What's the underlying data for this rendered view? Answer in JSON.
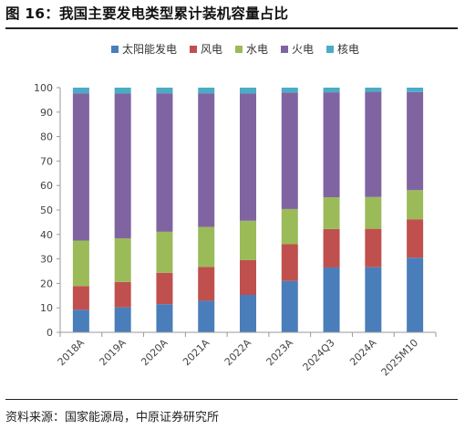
{
  "figure": {
    "title": "图 16：我国主要发电类型累计装机容量占比",
    "source": "资料来源：国家能源局，中原证券研究所"
  },
  "chart_data": {
    "type": "bar",
    "stacked": true,
    "categories": [
      "2018A",
      "2019A",
      "2020A",
      "2021A",
      "2022A",
      "2023A",
      "2024Q3",
      "2024A",
      "2025M10"
    ],
    "series": [
      {
        "name": "太阳能发电",
        "color": "#4a7ebb",
        "values": [
          9.2,
          10.2,
          11.5,
          12.9,
          15.3,
          21.0,
          26.5,
          26.6,
          30.5
        ]
      },
      {
        "name": "风电",
        "color": "#c0504d",
        "values": [
          9.7,
          10.4,
          12.8,
          13.8,
          14.2,
          15.0,
          15.7,
          15.7,
          15.7
        ]
      },
      {
        "name": "水电",
        "color": "#9bbb59",
        "values": [
          18.6,
          17.8,
          16.8,
          16.4,
          16.1,
          14.4,
          13.0,
          13.0,
          11.9
        ]
      },
      {
        "name": "火电",
        "color": "#8064a2",
        "values": [
          60.2,
          59.2,
          56.6,
          54.6,
          52.0,
          47.6,
          42.9,
          43.0,
          40.1
        ]
      },
      {
        "name": "核电",
        "color": "#4bacc6",
        "values": [
          2.3,
          2.4,
          2.3,
          2.3,
          2.4,
          2.0,
          1.9,
          1.7,
          1.8
        ]
      }
    ],
    "yticks": [
      0,
      10,
      20,
      30,
      40,
      50,
      60,
      70,
      80,
      90,
      100
    ],
    "ylim": [
      0,
      100
    ],
    "grid": false,
    "legend": "top-center"
  }
}
